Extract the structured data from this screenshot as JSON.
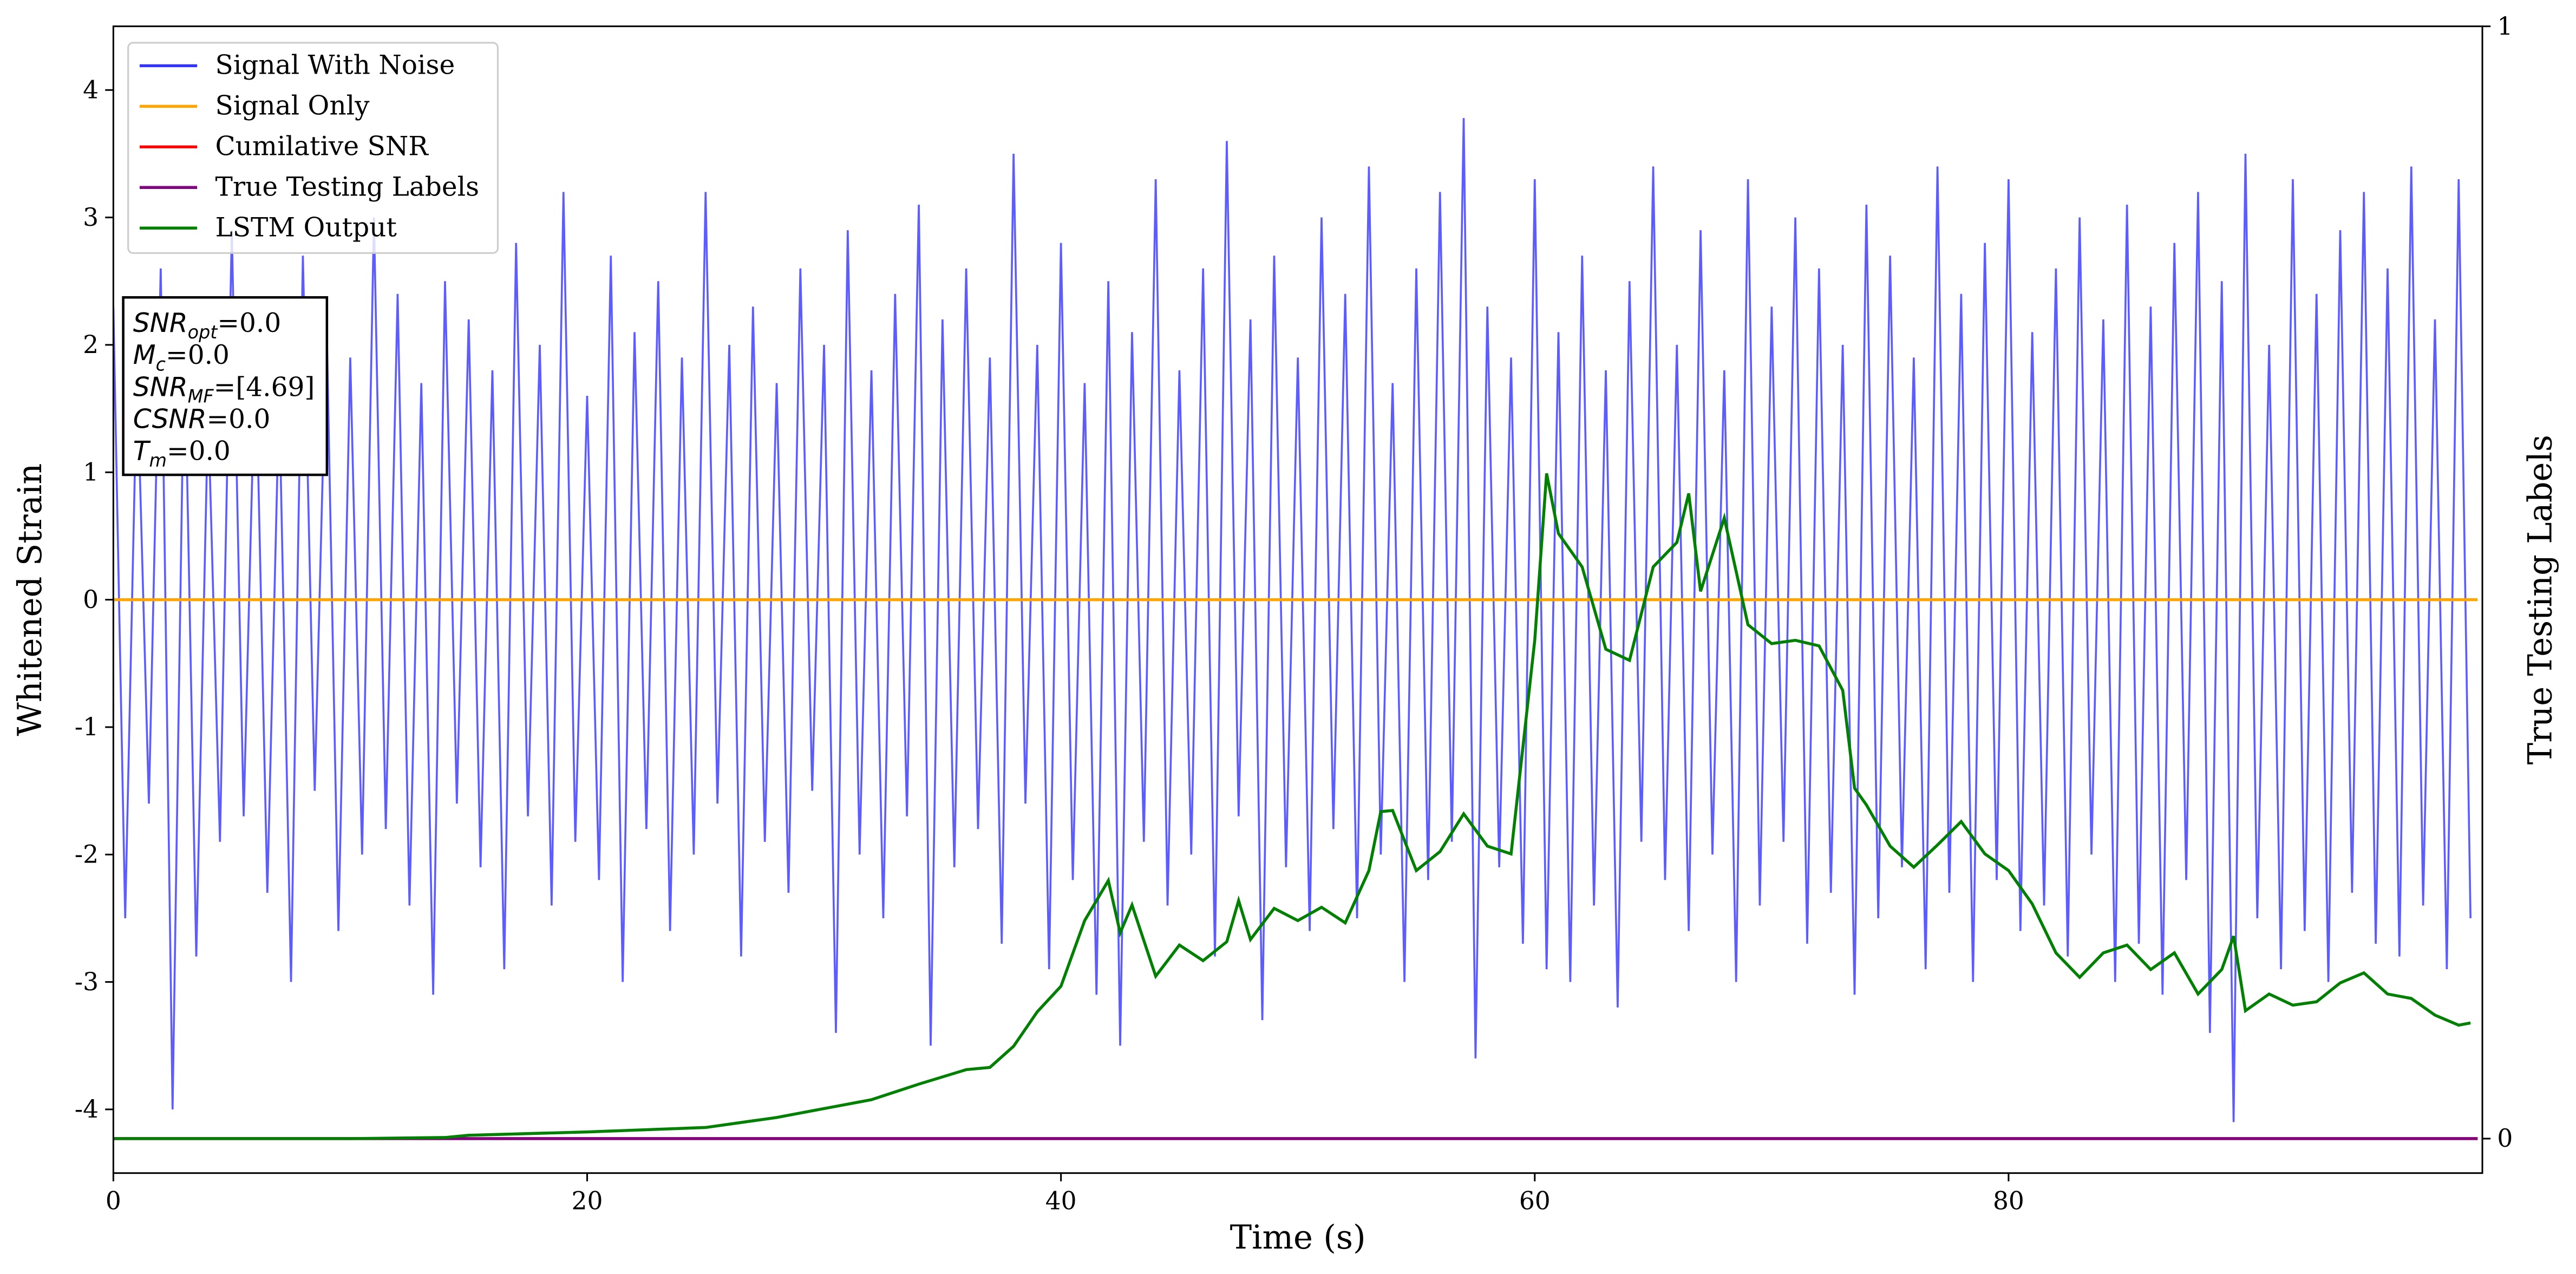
{
  "chart_data": {
    "type": "line",
    "xlabel": "Time (s)",
    "ylabel": "Whitened Strain",
    "y2label": "True Testing Labels",
    "xlim": [
      0,
      100
    ],
    "xticks": [
      0,
      20,
      40,
      60,
      80
    ],
    "ylim": [
      -4.5,
      4.5
    ],
    "yticks": [
      -4,
      -3,
      -2,
      -1,
      0,
      1,
      2,
      3,
      4
    ],
    "y2lim": [
      -0.031,
      1
    ],
    "y2ticks": [
      0,
      1
    ],
    "legend": "upper left",
    "annotation": [
      {
        "symbol": "SNR",
        "sub": "opt",
        "text": "=0.0"
      },
      {
        "symbol": "M",
        "sub": "c",
        "text": "=0.0"
      },
      {
        "symbol": "SNR",
        "sub": "MF",
        "text": "=[4.69]"
      },
      {
        "symbol": "CSNR",
        "text": "=0.0"
      },
      {
        "symbol": "T",
        "sub": "m",
        "text": "=0.0"
      }
    ],
    "series": [
      {
        "name": "Signal With Noise",
        "color": "#3333ff",
        "x": [
          0,
          0.5,
          1,
          1.5,
          2,
          2.5,
          3,
          3.5,
          4,
          4.5,
          5,
          5.5,
          6,
          6.5,
          7,
          7.5,
          8,
          8.5,
          9,
          9.5,
          10,
          10.5,
          11,
          11.5,
          12,
          12.5,
          13,
          13.5,
          14,
          14.5,
          15,
          15.5,
          16,
          16.5,
          17,
          17.5,
          18,
          18.5,
          19,
          19.5,
          20,
          20.5,
          21,
          21.5,
          22,
          22.5,
          23,
          23.5,
          24,
          24.5,
          25,
          25.5,
          26,
          26.5,
          27,
          27.5,
          28,
          28.5,
          29,
          29.5,
          30,
          30.5,
          31,
          31.5,
          32,
          32.5,
          33,
          33.5,
          34,
          34.5,
          35,
          35.5,
          36,
          36.5,
          37,
          37.5,
          38,
          38.5,
          39,
          39.5,
          40,
          40.5,
          41,
          41.5,
          42,
          42.5,
          43,
          43.5,
          44,
          44.5,
          45,
          45.5,
          46,
          46.5,
          47,
          47.5,
          48,
          48.5,
          49,
          49.5,
          50,
          50.5,
          51,
          51.5,
          52,
          52.5,
          53,
          53.5,
          54,
          54.5,
          55,
          55.5,
          56,
          56.5,
          57,
          57.5,
          58,
          58.5,
          59,
          59.5,
          60,
          60.5,
          61,
          61.5,
          62,
          62.5,
          63,
          63.5,
          64,
          64.5,
          65,
          65.5,
          66,
          66.5,
          67,
          67.5,
          68,
          68.5,
          69,
          69.5,
          70,
          70.5,
          71,
          71.5,
          72,
          72.5,
          73,
          73.5,
          74,
          74.5,
          75,
          75.5,
          76,
          76.5,
          77,
          77.5,
          78,
          78.5,
          79,
          79.5,
          80,
          80.5,
          81,
          81.5,
          82,
          82.5,
          83,
          83.5,
          84,
          84.5,
          85,
          85.5,
          86,
          86.5,
          87,
          87.5,
          88,
          88.5,
          89,
          89.5,
          90,
          90.5,
          91,
          91.5,
          92,
          92.5,
          93,
          93.5,
          94,
          94.5,
          95,
          95.5,
          96,
          96.5,
          97,
          97.5,
          98,
          98.5,
          99,
          99.5
        ],
        "values": [
          2.3,
          -2.5,
          1.8,
          -1.6,
          2.6,
          -4.0,
          2.1,
          -2.8,
          1.5,
          -1.9,
          2.9,
          -1.7,
          2.0,
          -2.3,
          1.6,
          -3.0,
          2.7,
          -1.5,
          2.2,
          -2.6,
          1.9,
          -2.0,
          3.0,
          -1.8,
          2.4,
          -2.4,
          1.7,
          -3.1,
          2.5,
          -1.6,
          2.2,
          -2.1,
          1.8,
          -2.9,
          2.8,
          -1.7,
          2.0,
          -2.4,
          3.2,
          -1.9,
          1.6,
          -2.2,
          2.7,
          -3.0,
          2.1,
          -1.8,
          2.5,
          -2.6,
          1.9,
          -2.0,
          3.2,
          -1.6,
          2.0,
          -2.8,
          2.3,
          -1.9,
          1.7,
          -2.3,
          2.6,
          -1.5,
          2.0,
          -3.4,
          2.9,
          -2.0,
          1.8,
          -2.5,
          2.4,
          -1.7,
          3.1,
          -3.5,
          2.2,
          -2.1,
          2.6,
          -1.8,
          1.9,
          -2.7,
          3.5,
          -1.6,
          2.0,
          -2.9,
          2.8,
          -2.2,
          1.7,
          -3.1,
          2.5,
          -3.5,
          2.1,
          -1.9,
          3.3,
          -2.4,
          1.8,
          -2.0,
          2.6,
          -2.8,
          3.6,
          -1.7,
          2.2,
          -3.3,
          2.7,
          -2.1,
          1.9,
          -2.6,
          3.0,
          -1.8,
          2.4,
          -2.5,
          3.4,
          -2.0,
          1.7,
          -3.0,
          2.6,
          -2.2,
          3.2,
          -1.9,
          3.78,
          -3.6,
          2.3,
          -2.1,
          1.9,
          -2.7,
          3.3,
          -2.9,
          2.1,
          -3.0,
          2.7,
          -2.4,
          1.8,
          -3.2,
          2.5,
          -1.9,
          3.4,
          -2.2,
          2.0,
          -2.6,
          2.9,
          -2.0,
          1.8,
          -3.0,
          3.3,
          -2.4,
          2.3,
          -1.9,
          3.0,
          -2.7,
          2.6,
          -2.3,
          2.0,
          -3.1,
          3.1,
          -2.5,
          2.7,
          -2.1,
          1.9,
          -2.9,
          3.4,
          -2.3,
          2.4,
          -3.0,
          2.8,
          -2.2,
          3.3,
          -2.6,
          2.1,
          -2.4,
          2.6,
          -2.8,
          3.0,
          -2.0,
          2.2,
          -3.0,
          3.1,
          -2.7,
          2.3,
          -3.1,
          2.8,
          -2.2,
          3.2,
          -3.4,
          2.5,
          -4.1,
          3.5,
          -2.5,
          2.0,
          -2.9,
          3.3,
          -2.6,
          2.4,
          -3.0,
          2.9,
          -2.3,
          3.2,
          -2.7,
          2.6,
          -2.8,
          3.4,
          -2.4,
          2.2,
          -2.9,
          3.3,
          -2.5
        ]
      },
      {
        "name": "Signal Only",
        "color": "#ffa500",
        "x": [
          0,
          99.8
        ],
        "values": [
          0,
          0
        ]
      },
      {
        "name": "Cumilative SNR",
        "color": "#ff0000",
        "axis": "y2",
        "x": [
          0,
          99.8
        ],
        "values": [
          0,
          0
        ]
      },
      {
        "name": "True Testing Labels",
        "color": "#800080",
        "axis": "y2",
        "x": [
          0,
          99.8
        ],
        "values": [
          0,
          0
        ]
      },
      {
        "name": "LSTM Output",
        "color": "#008000",
        "axis": "y2",
        "x": [
          0,
          5,
          10,
          14,
          15,
          20,
          25,
          28,
          30,
          32,
          34,
          36,
          37,
          38,
          39,
          40,
          41,
          42,
          42.5,
          43,
          44,
          45,
          46,
          47,
          47.5,
          48,
          49,
          50,
          51,
          52,
          53,
          53.5,
          54,
          55,
          56,
          57,
          58,
          59,
          60,
          60.5,
          61,
          62,
          63,
          64,
          65,
          66,
          66.5,
          67,
          68,
          69,
          70,
          71,
          72,
          73,
          73.5,
          74,
          75,
          76,
          77,
          78,
          79,
          80,
          81,
          82,
          83,
          84,
          85,
          86,
          87,
          88,
          89,
          89.5,
          90,
          91,
          92,
          93,
          94,
          95,
          96,
          97,
          98,
          99,
          99.5
        ],
        "values": [
          0,
          0,
          0,
          0.001,
          0.003,
          0.006,
          0.01,
          0.019,
          0.027,
          0.035,
          0.049,
          0.062,
          0.064,
          0.083,
          0.114,
          0.137,
          0.196,
          0.232,
          0.185,
          0.21,
          0.146,
          0.174,
          0.16,
          0.177,
          0.214,
          0.179,
          0.207,
          0.196,
          0.208,
          0.194,
          0.241,
          0.294,
          0.295,
          0.241,
          0.258,
          0.292,
          0.263,
          0.256,
          0.448,
          0.598,
          0.544,
          0.514,
          0.44,
          0.43,
          0.514,
          0.536,
          0.58,
          0.492,
          0.558,
          0.462,
          0.445,
          0.448,
          0.443,
          0.403,
          0.315,
          0.3,
          0.263,
          0.244,
          0.264,
          0.285,
          0.256,
          0.241,
          0.211,
          0.167,
          0.145,
          0.167,
          0.174,
          0.152,
          0.167,
          0.13,
          0.152,
          0.182,
          0.115,
          0.13,
          0.12,
          0.123,
          0.14,
          0.149,
          0.13,
          0.126,
          0.111,
          0.102,
          0.104
        ]
      }
    ]
  }
}
